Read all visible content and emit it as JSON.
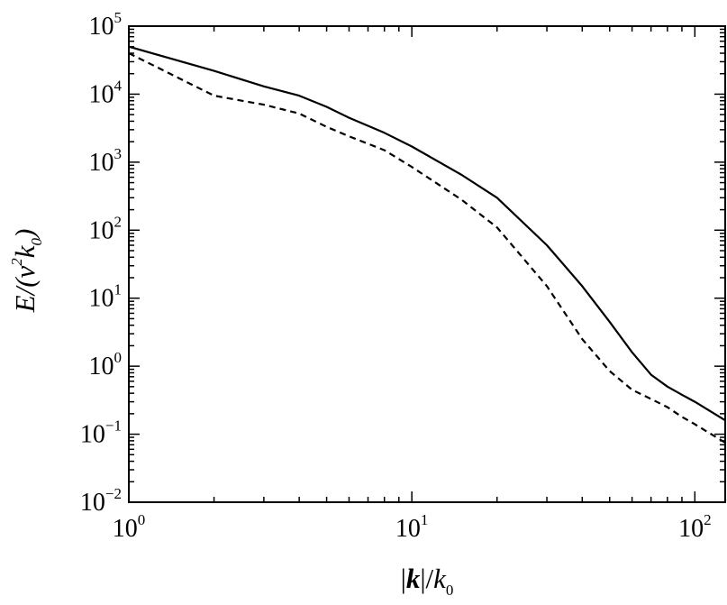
{
  "chart_data": {
    "type": "line",
    "title": "",
    "xlabel": "|k|/k0",
    "ylabel": "E/(ν²k0)",
    "xscale": "log",
    "yscale": "log",
    "xlim": [
      1,
      128
    ],
    "ylim": [
      0.01,
      100000
    ],
    "grid": false,
    "legend": "none",
    "x_ticks": [
      {
        "value": 1,
        "base": "10",
        "exp": "0"
      },
      {
        "value": 10,
        "base": "10",
        "exp": "1"
      },
      {
        "value": 100,
        "base": "10",
        "exp": "2"
      }
    ],
    "y_ticks": [
      {
        "value": 0.01,
        "base": "10",
        "exp": "−2"
      },
      {
        "value": 0.1,
        "base": "10",
        "exp": "−1"
      },
      {
        "value": 1,
        "base": "10",
        "exp": "0"
      },
      {
        "value": 10,
        "base": "10",
        "exp": "1"
      },
      {
        "value": 100,
        "base": "10",
        "exp": "2"
      },
      {
        "value": 1000,
        "base": "10",
        "exp": "3"
      },
      {
        "value": 10000,
        "base": "10",
        "exp": "4"
      },
      {
        "value": 100000,
        "base": "10",
        "exp": "5"
      }
    ],
    "series": [
      {
        "style": "solid",
        "x": [
          1,
          2,
          3,
          4,
          5,
          6,
          8,
          10,
          15,
          20,
          30,
          40,
          50,
          60,
          70,
          80,
          90,
          100,
          128
        ],
        "y": [
          50000,
          22000,
          13000,
          9500,
          6500,
          4500,
          2700,
          1700,
          650,
          300,
          60,
          15,
          4.5,
          1.6,
          0.75,
          0.5,
          0.38,
          0.3,
          0.16
        ]
      },
      {
        "style": "dashed",
        "x": [
          1,
          2,
          3,
          4,
          5,
          6,
          8,
          10,
          15,
          20,
          30,
          40,
          50,
          60,
          70,
          80,
          90,
          100,
          128
        ],
        "y": [
          40000,
          9500,
          7000,
          5200,
          3300,
          2400,
          1500,
          850,
          280,
          110,
          15,
          2.5,
          0.85,
          0.45,
          0.33,
          0.25,
          0.18,
          0.14,
          0.075
        ]
      }
    ]
  }
}
